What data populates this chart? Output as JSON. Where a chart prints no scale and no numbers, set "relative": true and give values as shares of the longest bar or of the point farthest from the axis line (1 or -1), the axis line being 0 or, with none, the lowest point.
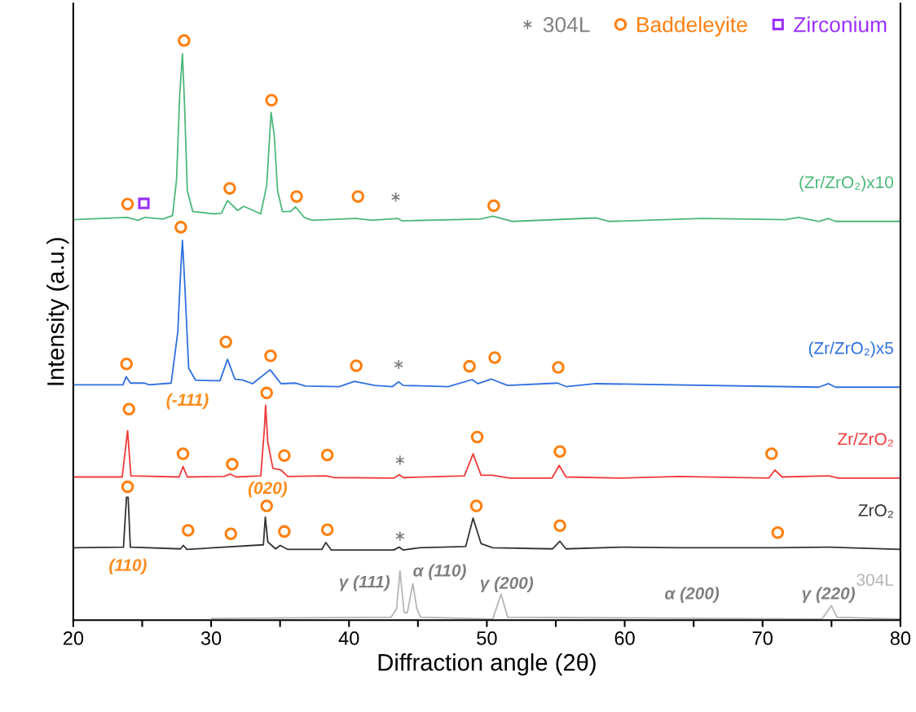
{
  "chart_data": {
    "type": "line",
    "relative": true,
    "xlabel": "Diffraction angle (2θ)",
    "ylabel": "Intensity (a.u.)",
    "xlim": [
      20,
      80
    ],
    "xticks": [
      20,
      {
        "value": 25,
        "label": null
      },
      30,
      {
        "value": 35,
        "label": null
      },
      40,
      {
        "value": 45,
        "label": null
      },
      50,
      {
        "value": 55,
        "label": null
      },
      60,
      {
        "value": 65,
        "label": null
      },
      70,
      {
        "value": 75,
        "label": null
      },
      80
    ],
    "tick_labels": "x",
    "grid": false,
    "legend": "top right",
    "marker": "none",
    "line_style": "solid",
    "series": [
      {
        "name": "(Zr/ZrO₂)x10",
        "color": "#4db87a",
        "x": [
          20,
          23.9,
          24.7,
          25.2,
          26.5,
          27.2,
          27.49,
          27.72,
          27.92,
          28.08,
          28.27,
          28.67,
          30.23,
          30.74,
          31.19,
          31.92,
          32.37,
          33.6,
          34.03,
          34.35,
          34.58,
          34.82,
          35.17,
          35.76,
          36.12,
          36.75,
          37.34,
          40.49,
          41.67,
          43.54,
          43.84,
          49.55,
          50.43,
          51.88,
          57.91,
          58.87,
          65.63,
          71.66,
          72.62,
          74.07,
          74.79,
          75.28,
          80
        ],
        "values": [
          0.691,
          0.695,
          0.69,
          0.695,
          0.692,
          0.698,
          0.76,
          0.906,
          0.977,
          0.883,
          0.741,
          0.705,
          0.701,
          0.702,
          0.724,
          0.707,
          0.714,
          0.701,
          0.75,
          0.876,
          0.836,
          0.741,
          0.705,
          0.705,
          0.713,
          0.695,
          0.69,
          0.693,
          0.69,
          0.693,
          0.689,
          0.692,
          0.697,
          0.688,
          0.694,
          0.688,
          0.693,
          0.691,
          0.695,
          0.688,
          0.693,
          0.688,
          0.688
        ]
      },
      {
        "name": "(Zr/ZrO₂)x5",
        "color": "#2f6fe0",
        "x": [
          20,
          23.6,
          23.84,
          24.14,
          25.16,
          25.5,
          27.1,
          27.58,
          27.8,
          27.92,
          28.08,
          28.37,
          28.87,
          30.64,
          31.19,
          31.72,
          32.31,
          33.0,
          34.28,
          35.07,
          36.15,
          36.84,
          39.3,
          40.39,
          41.87,
          43.15,
          43.6,
          43.94,
          47.19,
          48.93,
          49.36,
          50.31,
          51.51,
          55.13,
          55.74,
          57.91,
          74.07,
          74.79,
          75.28,
          80
        ],
        "values": [
          0.406,
          0.406,
          0.42,
          0.409,
          0.409,
          0.406,
          0.409,
          0.497,
          0.607,
          0.655,
          0.583,
          0.435,
          0.414,
          0.413,
          0.45,
          0.416,
          0.414,
          0.408,
          0.432,
          0.408,
          0.409,
          0.404,
          0.403,
          0.412,
          0.405,
          0.403,
          0.411,
          0.405,
          0.403,
          0.415,
          0.408,
          0.416,
          0.405,
          0.409,
          0.403,
          0.408,
          0.402,
          0.408,
          0.402,
          0.402
        ]
      },
      {
        "name": "Zr/ZrO₂",
        "color": "#f03a3a",
        "x": [
          20,
          23.55,
          23.94,
          24.18,
          27.68,
          27.96,
          28.27,
          30.93,
          31.39,
          31.82,
          33.6,
          33.86,
          33.95,
          34.11,
          34.48,
          35.07,
          35.56,
          38.32,
          38.91,
          43.25,
          43.64,
          43.94,
          48.37,
          49.0,
          49.58,
          50.43,
          51.63,
          54.72,
          55.25,
          55.74,
          59.6,
          63.94,
          70.45,
          70.89,
          71.42,
          74.79,
          75.52,
          80
        ],
        "values": [
          0.247,
          0.247,
          0.327,
          0.249,
          0.247,
          0.265,
          0.247,
          0.248,
          0.252,
          0.247,
          0.249,
          0.33,
          0.371,
          0.307,
          0.262,
          0.259,
          0.248,
          0.249,
          0.246,
          0.245,
          0.251,
          0.246,
          0.249,
          0.287,
          0.25,
          0.25,
          0.245,
          0.245,
          0.267,
          0.247,
          0.245,
          0.248,
          0.245,
          0.259,
          0.247,
          0.249,
          0.245,
          0.245
        ]
      },
      {
        "name": "ZrO₂",
        "color": "#333333",
        "x": [
          20,
          23.64,
          23.86,
          23.98,
          24.14,
          27.78,
          27.98,
          28.24,
          33.79,
          33.93,
          34.11,
          34.68,
          35.01,
          35.56,
          38.03,
          38.32,
          38.72,
          43.25,
          43.64,
          43.94,
          45.12,
          48.47,
          49.0,
          49.58,
          50.43,
          54.77,
          55.3,
          55.74,
          59.84,
          63.94,
          70.94,
          74.79,
          80
        ],
        "values": [
          0.125,
          0.126,
          0.212,
          0.212,
          0.126,
          0.123,
          0.129,
          0.122,
          0.13,
          0.178,
          0.135,
          0.123,
          0.129,
          0.122,
          0.122,
          0.134,
          0.121,
          0.121,
          0.126,
          0.121,
          0.125,
          0.127,
          0.176,
          0.132,
          0.125,
          0.123,
          0.136,
          0.123,
          0.126,
          0.125,
          0.125,
          0.126,
          0.122
        ]
      },
      {
        "name": "304L",
        "color": "#b5b5b5",
        "x": [
          30.05,
          43.05,
          43.45,
          43.7,
          44.0,
          44.23,
          44.63,
          44.92,
          45.2,
          50.43,
          51.03,
          51.51,
          74.31,
          74.99,
          75.4,
          80
        ],
        "values": [
          0.003,
          0.005,
          0.02,
          0.085,
          0.013,
          0.013,
          0.063,
          0.02,
          0.005,
          0.002,
          0.045,
          0.005,
          0.002,
          0.025,
          0.005,
          0.002
        ]
      },
      {
        "name": "304L",
        "type": "scatter",
        "marker": "cross",
        "color": "#808080",
        "x": [
          43.39,
          43.6,
          43.7,
          43.7
        ],
        "values": [
          0.73,
          0.441,
          0.276,
          0.145
        ]
      },
      {
        "name": "Baddeleyite",
        "type": "scatter",
        "marker": "circle",
        "color": "#ff7f0e",
        "x": [
          23.94,
          28.04,
          31.35,
          34.38,
          36.2,
          40.65,
          50.5,
          23.86,
          27.8,
          31.07,
          34.31,
          40.53,
          48.74,
          50.57,
          55.18,
          24.04,
          27.96,
          31.53,
          34.03,
          35.31,
          38.43,
          49.3,
          55.3,
          70.65,
          23.94,
          28.33,
          31.43,
          34.03,
          35.31,
          38.43,
          49.24,
          55.3,
          71.1
        ],
        "values": [
          0.718,
          1.0,
          0.745,
          0.897,
          0.731,
          0.731,
          0.715,
          0.442,
          0.678,
          0.48,
          0.456,
          0.439,
          0.438,
          0.453,
          0.436,
          0.364,
          0.287,
          0.269,
          0.392,
          0.284,
          0.285,
          0.316,
          0.291,
          0.287,
          0.23,
          0.155,
          0.149,
          0.197,
          0.153,
          0.156,
          0.197,
          0.163,
          0.151
        ]
      },
      {
        "name": "Zirconium",
        "type": "scatter",
        "marker": "square",
        "color": "#9b30ff",
        "x": [
          25.12
        ],
        "values": [
          0.719
        ]
      }
    ],
    "annotations": [
      "(110)",
      "(-111)",
      "(020)",
      "γ (111)",
      "α (110)",
      "γ (200)",
      "α (200)",
      "γ (220)"
    ]
  }
}
